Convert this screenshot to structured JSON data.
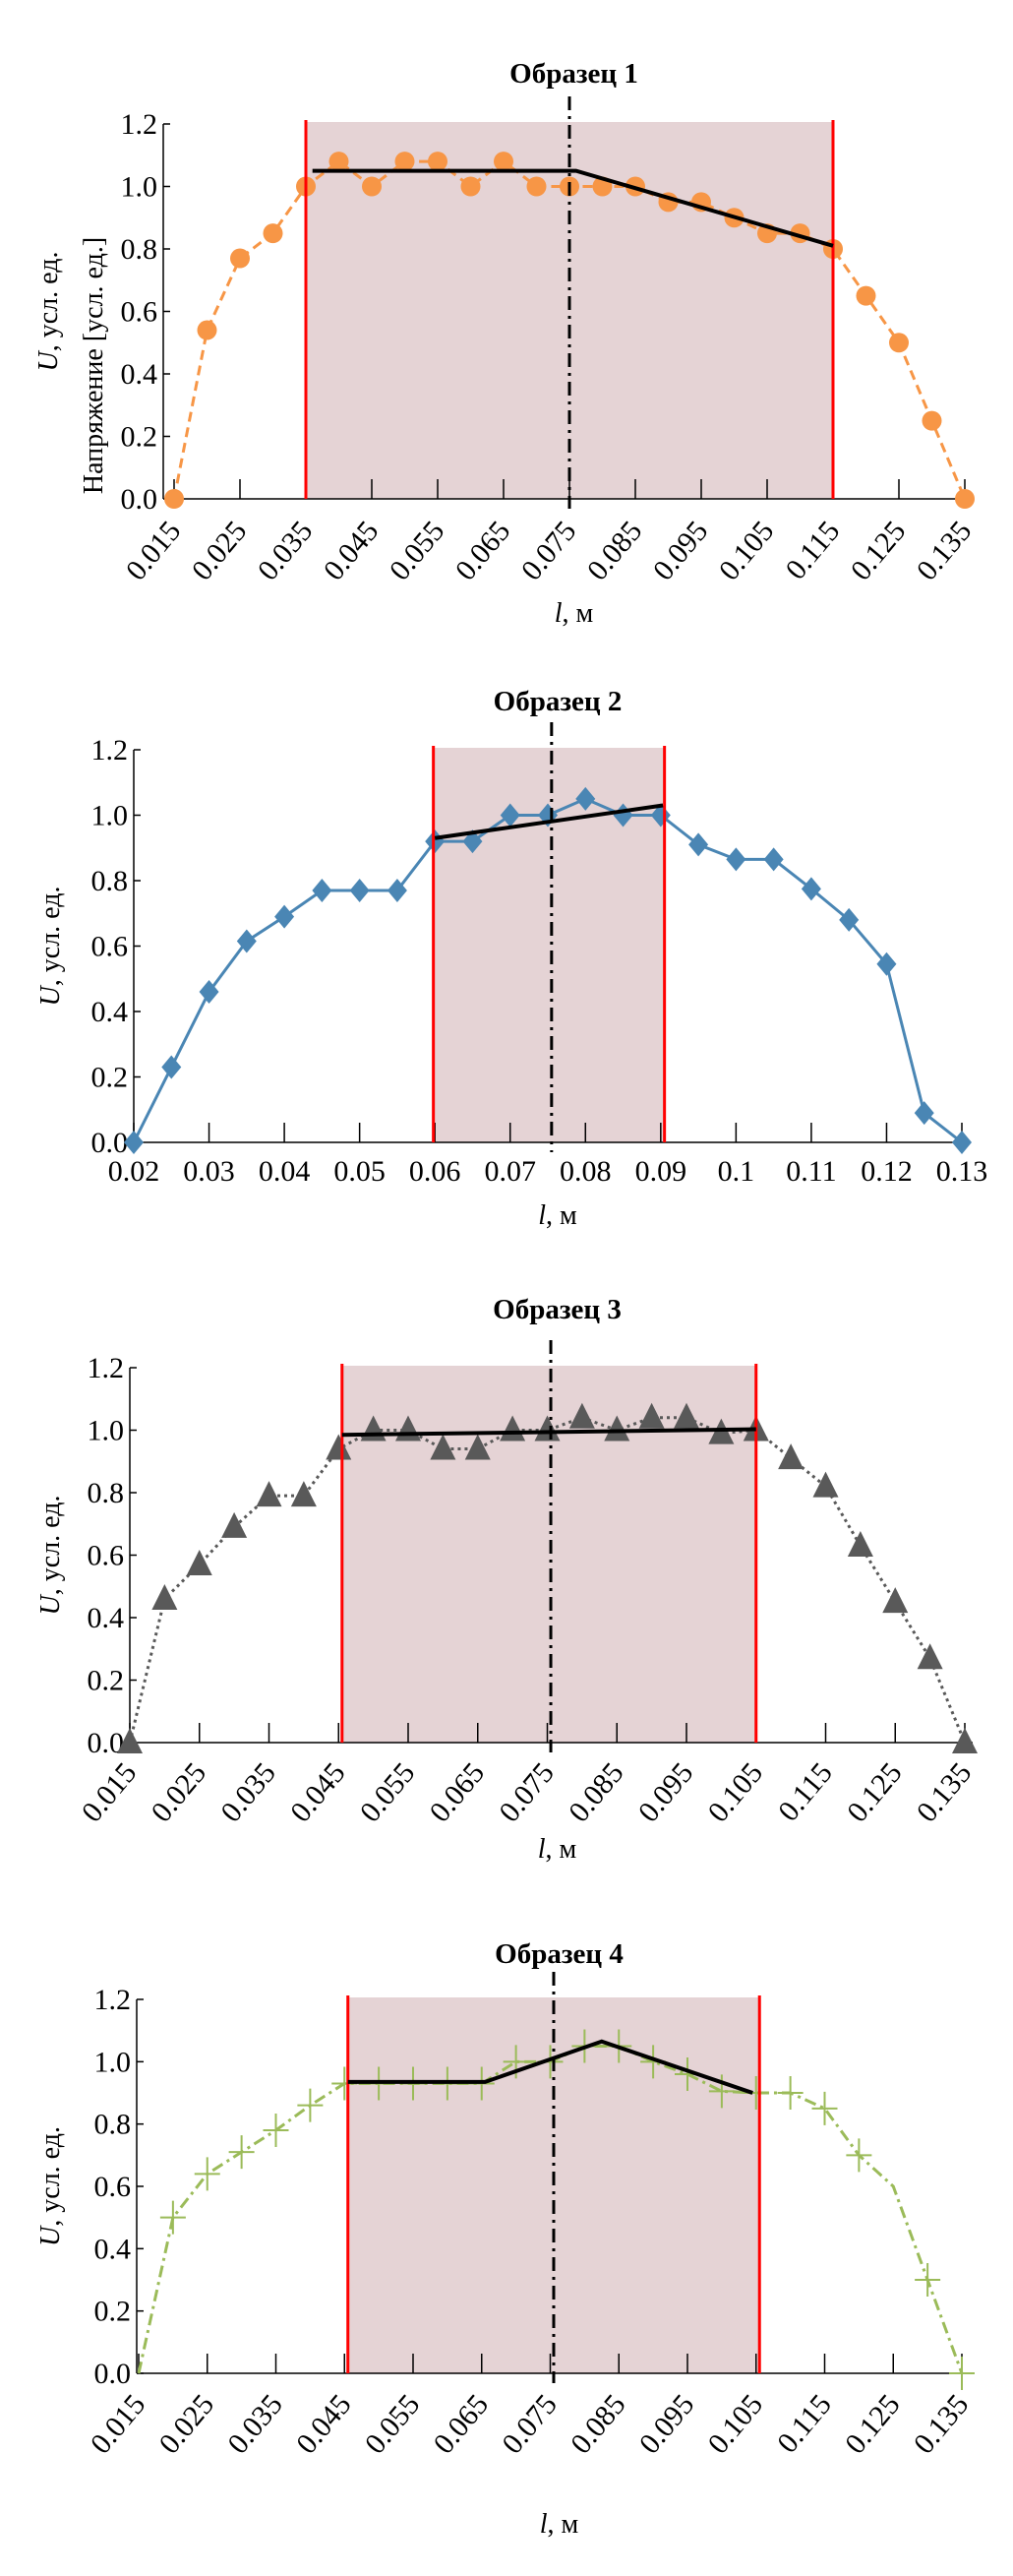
{
  "chart_data": [
    {
      "type": "line",
      "title": "Образец 1",
      "xlabel_var": "l",
      "xlabel_unit": ", м",
      "ylabel_var": "U",
      "ylabel_unit": ", усл. ед.",
      "ylabel2": "Напряжение [усл. ед.]",
      "xlim": [
        0.015,
        0.135
      ],
      "ylim": [
        0,
        1.2
      ],
      "grid": false,
      "xtick_values": [
        0.015,
        0.025,
        0.035,
        0.045,
        0.055,
        0.065,
        0.075,
        0.085,
        0.095,
        0.105,
        0.115,
        0.125,
        0.135
      ],
      "xticks": [
        "0.015",
        "0.025",
        "0.035",
        "0.045",
        "0.055",
        "0.065",
        "0.075",
        "0.085",
        "0.095",
        "0.105",
        "0.115",
        "0.125",
        "0.135"
      ],
      "xtick_rotated": true,
      "ytick_values": [
        0,
        0.2,
        0.4,
        0.6,
        0.8,
        1.0,
        1.2
      ],
      "yticks": [
        "0.0",
        "0.2",
        "0.4",
        "0.6",
        "0.8",
        "1.0",
        "1.2"
      ],
      "series": {
        "marker": "circle",
        "color": "#F79646",
        "line_style": "dashed",
        "x": [
          0.015,
          0.02,
          0.025,
          0.03,
          0.035,
          0.04,
          0.045,
          0.05,
          0.055,
          0.06,
          0.065,
          0.07,
          0.075,
          0.08,
          0.085,
          0.09,
          0.095,
          0.1,
          0.105,
          0.11,
          0.115,
          0.12,
          0.125,
          0.13,
          0.135
        ],
        "y": [
          0,
          0.54,
          0.77,
          0.85,
          1.0,
          1.08,
          1.0,
          1.08,
          1.08,
          1.0,
          1.08,
          1.0,
          1.0,
          1.0,
          1.0,
          0.95,
          0.95,
          0.9,
          0.85,
          0.85,
          0.8,
          0.65,
          0.5,
          0.25,
          0
        ]
      },
      "region": {
        "from": 0.035,
        "to": 0.115,
        "fill": "#E5D3D5",
        "boundary_color": "#FF0000"
      },
      "center_line": 0.075,
      "trend": {
        "x": [
          0.036,
          0.076,
          0.115
        ],
        "y": [
          1.05,
          1.05,
          0.81
        ]
      }
    },
    {
      "type": "line",
      "title": "Образец 2",
      "xlabel_var": "l",
      "xlabel_unit": ", м",
      "ylabel_var": "U",
      "ylabel_unit": ", усл. ед.",
      "xlim": [
        0.02,
        0.13
      ],
      "ylim": [
        0,
        1.2
      ],
      "grid": false,
      "xtick_values": [
        0.02,
        0.03,
        0.04,
        0.05,
        0.06,
        0.07,
        0.08,
        0.09,
        0.1,
        0.11,
        0.12,
        0.13
      ],
      "xticks": [
        "0.02",
        "0.03",
        "0.04",
        "0.05",
        "0.06",
        "0.07",
        "0.08",
        "0.09",
        "0.1",
        "0.11",
        "0.12",
        "0.13"
      ],
      "xtick_rotated": false,
      "ytick_values": [
        0,
        0.2,
        0.4,
        0.6,
        0.8,
        1.0,
        1.2
      ],
      "yticks": [
        "0.0",
        "0.2",
        "0.4",
        "0.6",
        "0.8",
        "1.0",
        "1.2"
      ],
      "series": {
        "marker": "diamond",
        "color": "#4A86B4",
        "line_style": "solid",
        "x": [
          0.02,
          0.025,
          0.03,
          0.035,
          0.04,
          0.045,
          0.05,
          0.055,
          0.06,
          0.065,
          0.07,
          0.075,
          0.08,
          0.085,
          0.09,
          0.095,
          0.1,
          0.105,
          0.11,
          0.115,
          0.12,
          0.125,
          0.13
        ],
        "y": [
          0,
          0.23,
          0.46,
          0.615,
          0.69,
          0.77,
          0.77,
          0.77,
          0.92,
          0.92,
          1.0,
          1.0,
          1.05,
          1.0,
          1.0,
          0.91,
          0.865,
          0.865,
          0.775,
          0.68,
          0.545,
          0.09,
          0
        ]
      },
      "region": {
        "from": 0.0598,
        "to": 0.0905,
        "fill": "#E5D3D5",
        "boundary_color": "#FF0000"
      },
      "center_line": 0.0755,
      "trend": {
        "x": [
          0.06,
          0.0903
        ],
        "y": [
          0.93,
          1.03
        ]
      }
    },
    {
      "type": "line",
      "title": "Образец 3",
      "xlabel_var": "l",
      "xlabel_unit": ", м",
      "ylabel_var": "U",
      "ylabel_unit": ", усл. ед.",
      "xlim": [
        0.015,
        0.135
      ],
      "ylim": [
        0,
        1.2
      ],
      "grid": false,
      "xtick_values": [
        0.015,
        0.025,
        0.035,
        0.045,
        0.055,
        0.065,
        0.075,
        0.085,
        0.095,
        0.105,
        0.115,
        0.125,
        0.135
      ],
      "xticks": [
        "0.015",
        "0.025",
        "0.035",
        "0.045",
        "0.055",
        "0.065",
        "0.075",
        "0.085",
        "0.095",
        "0.105",
        "0.115",
        "0.125",
        "0.135"
      ],
      "xtick_rotated": true,
      "ytick_values": [
        0,
        0.2,
        0.4,
        0.6,
        0.8,
        1.0,
        1.2
      ],
      "yticks": [
        "0.0",
        "0.2",
        "0.4",
        "0.6",
        "0.8",
        "1.0",
        "1.2"
      ],
      "series": {
        "marker": "triangle",
        "color": "#595959",
        "line_style": "dotted",
        "x": [
          0.015,
          0.02,
          0.025,
          0.03,
          0.035,
          0.04,
          0.045,
          0.05,
          0.055,
          0.06,
          0.065,
          0.07,
          0.075,
          0.08,
          0.085,
          0.09,
          0.095,
          0.1,
          0.105,
          0.11,
          0.115,
          0.12,
          0.125,
          0.13,
          0.135
        ],
        "y": [
          0,
          0.46,
          0.57,
          0.69,
          0.79,
          0.79,
          0.94,
          1.0,
          1.0,
          0.94,
          0.94,
          1.0,
          1.0,
          1.04,
          1.0,
          1.04,
          1.04,
          0.99,
          1.0,
          0.91,
          0.82,
          0.63,
          0.45,
          0.27,
          0
        ]
      },
      "region": {
        "from": 0.0455,
        "to": 0.105,
        "fill": "#E5D3D5",
        "boundary_color": "#FF0000"
      },
      "center_line": 0.0755,
      "trend": {
        "x": [
          0.0455,
          0.105
        ],
        "y": [
          0.985,
          1.003
        ]
      }
    },
    {
      "type": "line",
      "title": "Образец 4",
      "xlabel_var": "l",
      "xlabel_unit": ", м",
      "ylabel_var": "U",
      "ylabel_unit": ", усл. ед.",
      "xlim": [
        0.015,
        0.135
      ],
      "ylim": [
        0,
        1.2
      ],
      "grid": false,
      "xtick_values": [
        0.015,
        0.025,
        0.035,
        0.045,
        0.055,
        0.065,
        0.075,
        0.085,
        0.095,
        0.105,
        0.115,
        0.125,
        0.135
      ],
      "xticks": [
        "0.015",
        "0.025",
        "0.035",
        "0.045",
        "0.055",
        "0.065",
        "0.075",
        "0.085",
        "0.095",
        "0.105",
        "0.115",
        "0.125",
        "0.135"
      ],
      "xtick_rotated": true,
      "ytick_values": [
        0,
        0.2,
        0.4,
        0.6,
        0.8,
        1.0,
        1.2
      ],
      "yticks": [
        "0.0",
        "0.2",
        "0.4",
        "0.6",
        "0.8",
        "1.0",
        "1.2"
      ],
      "series": {
        "marker": "plus",
        "color": "#9BBB59",
        "line_style": "dashdot",
        "x": [
          0.015,
          0.02,
          0.025,
          0.03,
          0.035,
          0.04,
          0.045,
          0.05,
          0.055,
          0.06,
          0.065,
          0.07,
          0.075,
          0.08,
          0.085,
          0.09,
          0.095,
          0.1,
          0.105,
          0.11,
          0.115,
          0.12,
          0.125,
          0.13,
          0.135
        ],
        "y": [
          0,
          0.5,
          0.64,
          0.71,
          0.78,
          0.86,
          0.93,
          0.93,
          0.93,
          0.93,
          0.93,
          1.0,
          1.0,
          1.05,
          1.05,
          1.0,
          0.96,
          0.905,
          0.9,
          0.9,
          0.85,
          0.7,
          0.6,
          0.3,
          0
        ]
      },
      "region": {
        "from": 0.0455,
        "to": 0.1055,
        "fill": "#E5D3D5",
        "boundary_color": "#FF0000"
      },
      "center_line": 0.0755,
      "trend": {
        "x": [
          0.0455,
          0.0655,
          0.0825,
          0.1045
        ],
        "y": [
          0.935,
          0.935,
          1.065,
          0.9
        ]
      }
    }
  ]
}
